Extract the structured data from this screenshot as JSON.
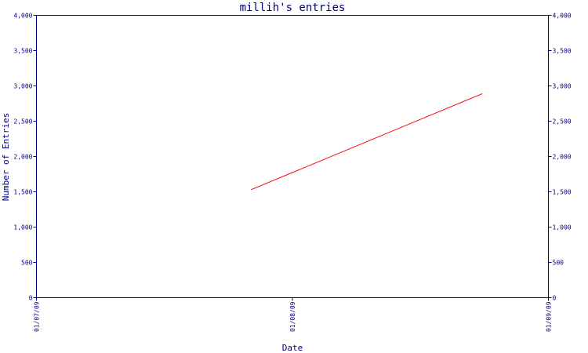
{
  "chart_data": {
    "type": "line",
    "title": "millih's entries",
    "xlabel": "Date",
    "ylabel": "Number of Entries",
    "x_ticks": [
      "01/07/09",
      "01/08/09",
      "01/09/09"
    ],
    "y_ticks": [
      "0",
      "500",
      "1,000",
      "1,500",
      "2,000",
      "2,500",
      "3,000",
      "3,500",
      "4,000"
    ],
    "ylim": [
      0,
      4000
    ],
    "grid": false,
    "series": [
      {
        "color": "#ff0000",
        "points": [
          {
            "x": "2009-07-27",
            "y": 1530
          },
          {
            "x": "2009-08-24",
            "y": 2890
          }
        ]
      }
    ],
    "axis_color": "#000080"
  }
}
